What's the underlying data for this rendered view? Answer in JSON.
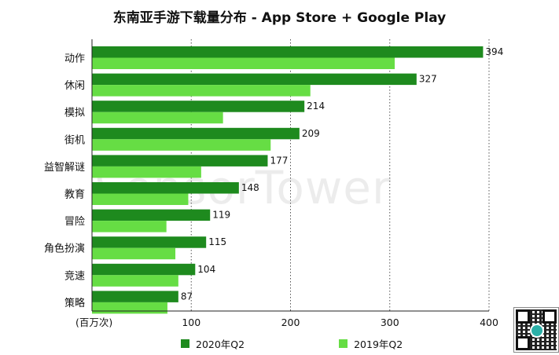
{
  "chart_data": {
    "type": "bar",
    "orientation": "horizontal",
    "title": "东南亚手游下载量分布 - App Store + Google Play",
    "unit_label": "(百万次)",
    "categories": [
      "动作",
      "休闲",
      "模拟",
      "街机",
      "益智解谜",
      "教育",
      "冒险",
      "角色扮演",
      "竞速",
      "策略"
    ],
    "series": [
      {
        "name": "2020年Q2",
        "color": "#1e8a1e",
        "values": [
          394,
          327,
          214,
          209,
          177,
          148,
          119,
          115,
          104,
          87
        ]
      },
      {
        "name": "2019年Q2",
        "color": "#66dd44",
        "values": [
          305,
          220,
          132,
          180,
          110,
          97,
          75,
          84,
          87,
          76
        ]
      }
    ],
    "value_labels": [
      "394",
      "327",
      "214",
      "209",
      "177",
      "148",
      "119",
      "115",
      "104",
      "87"
    ],
    "xlim": [
      0,
      400
    ],
    "xticks": [
      100,
      200,
      300,
      400
    ],
    "grid": true,
    "legend_position": "bottom"
  },
  "watermark": "SensorTower"
}
